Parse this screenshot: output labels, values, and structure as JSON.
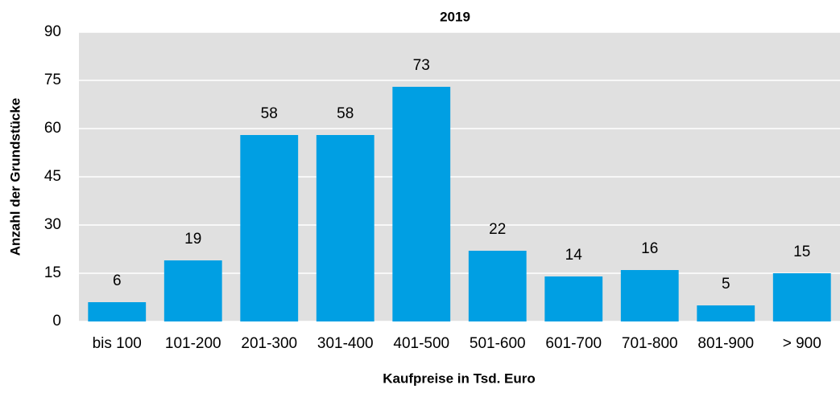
{
  "chart_data": {
    "type": "bar",
    "title": "2019",
    "x_label": "Kaufpreise in Tsd. Euro",
    "y_label": "Anzahl der Grundstücke",
    "categories": [
      "bis 100",
      "101-200",
      "201-300",
      "301-400",
      "401-500",
      "501-600",
      "601-700",
      "701-800",
      "801-900",
      "> 900"
    ],
    "values": [
      6,
      19,
      58,
      58,
      73,
      22,
      14,
      16,
      5,
      15
    ],
    "color": "#009fe3",
    "ylim": [
      0,
      90
    ],
    "yticks": [
      0,
      15,
      30,
      45,
      60,
      75,
      90
    ],
    "grid": true
  }
}
